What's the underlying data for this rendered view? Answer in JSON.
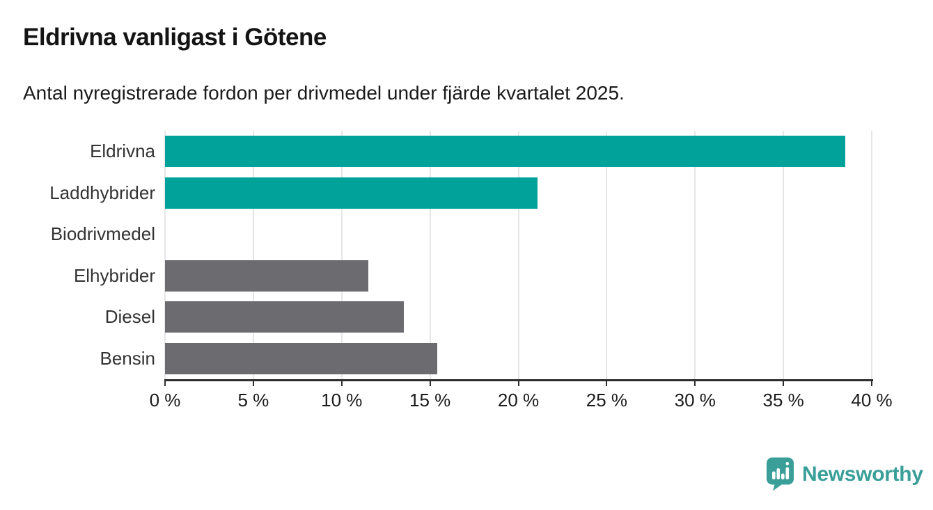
{
  "header": {
    "title": "Eldrivna vanligast i Götene",
    "subtitle": "Antal nyregistrerade fordon per drivmedel under fjärde kvartalet 2025."
  },
  "chart_data": {
    "type": "bar",
    "orientation": "horizontal",
    "title": "Eldrivna vanligast i Götene",
    "subtitle": "Antal nyregistrerade fordon per drivmedel under fjärde kvartalet 2025.",
    "categories": [
      "Eldrivna",
      "Laddhybrider",
      "Biodrivmedel",
      "Elhybrider",
      "Diesel",
      "Bensin"
    ],
    "values": [
      38.5,
      21.1,
      0,
      11.5,
      13.5,
      15.4
    ],
    "unit": "%",
    "xlabel": "",
    "ylabel": "",
    "xlim": [
      0,
      40
    ],
    "x_ticks": [
      0,
      5,
      10,
      15,
      20,
      25,
      30,
      35,
      40
    ],
    "x_tick_labels": [
      "0 %",
      "5 %",
      "10 %",
      "15 %",
      "20 %",
      "25 %",
      "30 %",
      "35 %",
      "40 %"
    ],
    "grid": true,
    "legend": false,
    "bar_colors": [
      "#00a29a",
      "#00a29a",
      "#6b6b70",
      "#6b6b70",
      "#6b6b70",
      "#6b6b70"
    ],
    "accent_color": "#00a29a",
    "default_color": "#6b6b70",
    "gridline_color": "#e6e6e6",
    "axis_color": "#2d2d2d"
  },
  "footer": {
    "brand": "Newsworthy",
    "brand_color": "#3a9f99",
    "logo_icon": "newsworthy-badge-icon"
  }
}
